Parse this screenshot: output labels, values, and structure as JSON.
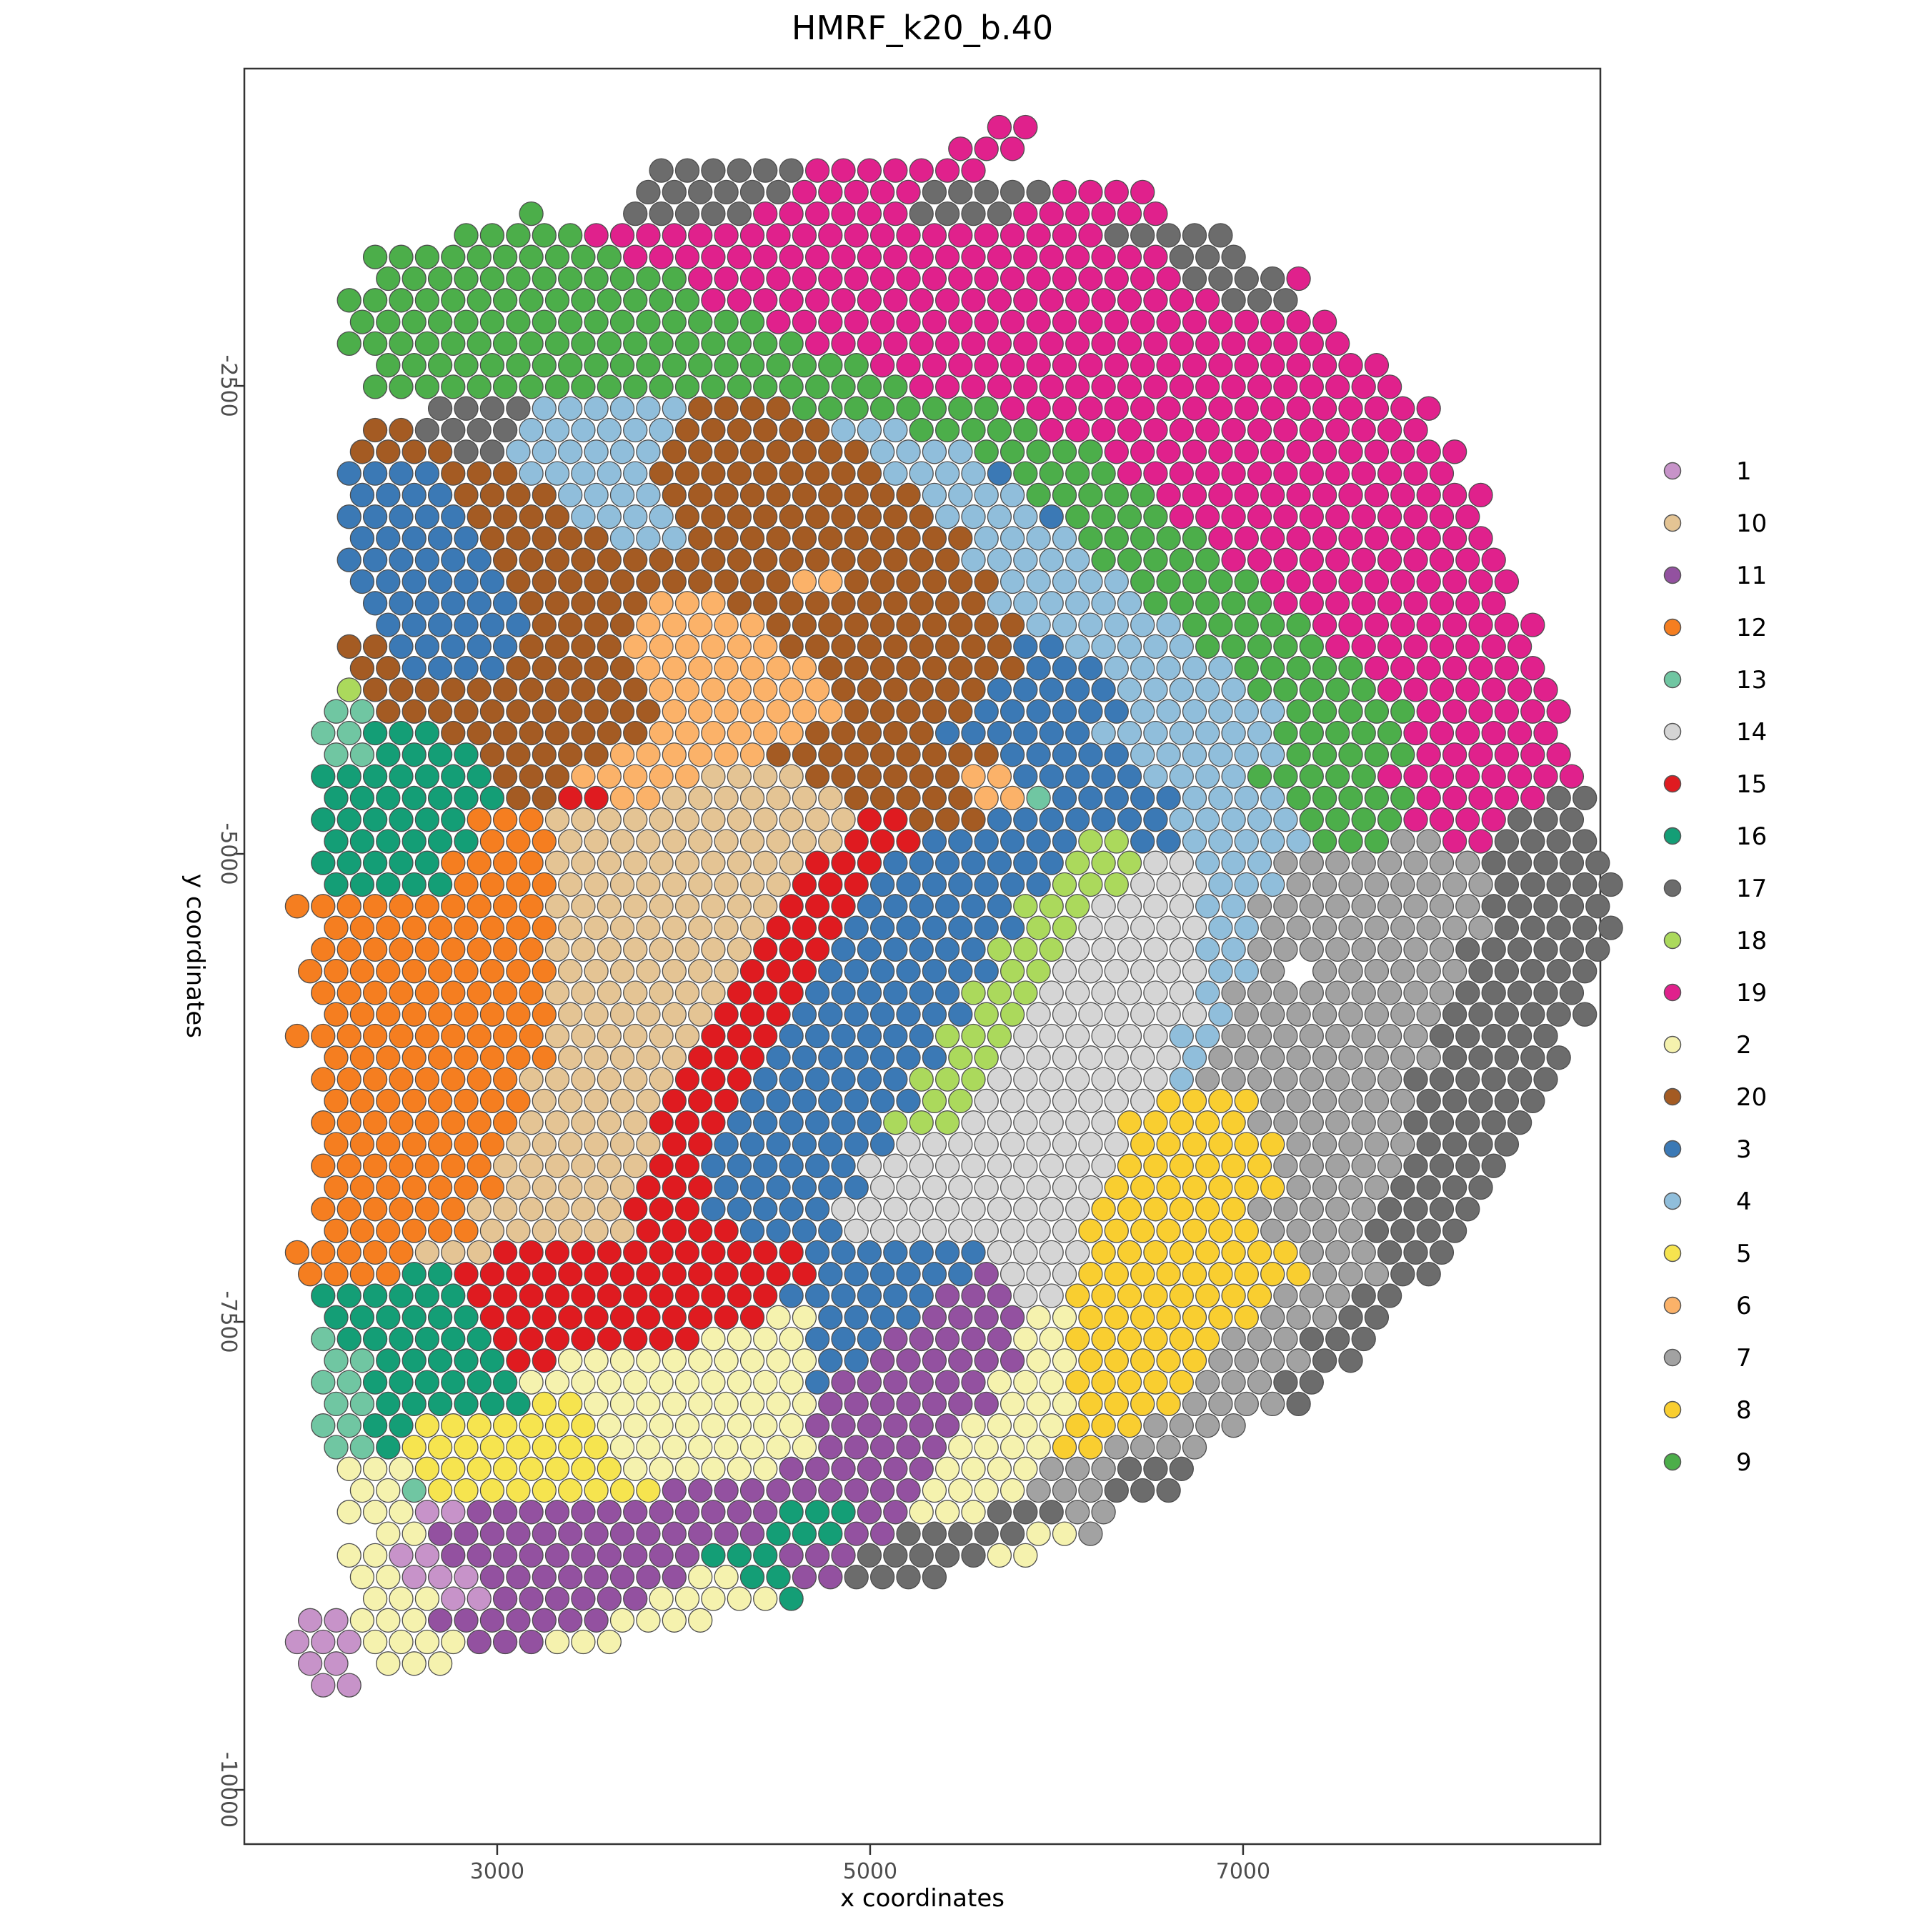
{
  "title": "HMRF_k20_b.40",
  "chart_data": {
    "type": "scatter",
    "title": "HMRF_k20_b.40",
    "xlabel": "x coordinates",
    "ylabel": "y coordinates",
    "x_ticks": [
      3000,
      5000,
      7000
    ],
    "y_ticks": [
      -2500,
      -5000,
      -7500,
      -10000
    ],
    "x_range": [
      1644,
      8916
    ],
    "y_range": [
      -10290,
      -805
    ],
    "grid_lines": false,
    "legend_position": "right",
    "legend_order": [
      "1",
      "10",
      "11",
      "12",
      "13",
      "14",
      "15",
      "16",
      "17",
      "18",
      "19",
      "2",
      "20",
      "3",
      "4",
      "5",
      "6",
      "7",
      "8",
      "9"
    ],
    "cluster_colors": {
      "1": "#C793C9",
      "2": "#F5F2AE",
      "3": "#3B79B5",
      "4": "#90BEDB",
      "5": "#F6E44F",
      "6": "#FBB269",
      "7": "#A2A2A2",
      "8": "#F9CE30",
      "9": "#4CAE4A",
      "10": "#E4C494",
      "11": "#9351A0",
      "12": "#F57E20",
      "13": "#70C6A2",
      "14": "#D5D5D5",
      "15": "#DF1B20",
      "16": "#149E76",
      "17": "#6C6C6C",
      "18": "#ABD95C",
      "19": "#E0218C",
      "20": "#A45B23"
    },
    "points_grid": {
      "comment": "Hexagonal spot lattice. Data coords: x = x0 + col*dx (+odd_offset on odd rows), y = y0 - row*dy. Rows are run-length encoded: <count><code>, '.'=empty.",
      "x0": 1927,
      "dx": 139.5,
      "odd_offset": 69.8,
      "y0": -1118,
      "dy": 115.6,
      "code_to_cluster": {
        "A": "1",
        "B": "2",
        "C": "3",
        "D": "4",
        "E": "5",
        "F": "6",
        "G": "7",
        "H": "8",
        "I": "9",
        "a": "10",
        "b": "11",
        "c": "12",
        "d": "13",
        "e": "14",
        "f": "15",
        "g": "16",
        "h": "17",
        "i": "18",
        "j": "19",
        "k": "20"
      },
      "rows": [
        "27.2j",
        "25.3j",
        "14.6h7j",
        "13.6h5j5h4j",
        "9.1I3.5h6j4h6j",
        "6.5I20j5h",
        "3.10I21j3h",
        "3.12I19j4h1j",
        "2.14I20j3h",
        "2.16I22j",
        "2.18I21j",
        "3.19I20j",
        "3.21I19j",
        "5.4h6D4k8I17j",
        "3.2k4h6D6k3D5I15j",
        "2.4k2h6D8k4D5I14j",
        "2.4C3k5D9k4D1C4I13j",
        "2.4C4k4D10k4D5I13j",
        "2.5C4k4D10k4D1C4I12j",
        "2.5C5k3D11k4D5I11j",
        "2.6C18k5D5I11j",
        "2.6C11k2F6k5D5I10j",
        "3.6C5k3F10k6D5I9j",
        "3.6C4k5F10k6D5I9j",
        "2.2k5C4k6F9k2C5D5I8j",
        "2.2k4C5k7F8k3C5D5I7j",
        "2.1i11k7F6k5C5D5I7j",
        "1.2d11k7F5k6C6D5I6j",
        "1.2d3g8k6F5k6C7D5I6j",
        "1.2d4g5k6F9k5C6D5I6j",
        "1.7g3k5F4a6k2F5C4D5I8j",
        "1.7g2k2f2F7a5k2F1d5C4D5I5j2h",
        "1.6g3c12a2f3k7C5D4I4j3h",
        "1.6g3c11a3f6C2i2C5D3I2G2j4h",
        "1.5g4c10a3f7C3i2e3D8G5h",
        "1.5g4c9a3f7C3i3e3D8G5h",
        "10c9a3f6C3i4e2D9G5h",
        "1.9c8a3f7C2i5e2D9G5h",
        "1.9c8a3f6C3i5e2D8G6h",
        "10c7a3f7C2i6e2D1G1.6G5h",
        "1.9c7a3f6C3i6e1D9G5h",
        "1.9c6a3f7C2i7e1D8G6h",
        "10c6a3f6C3i6e2D8G5h",
        "1.9c5a3f7C2i7e1D9G5h",
        "1.8c6a3f6C3i7e1D8G6h",
        "1.8c5a3f7C2i7e4H6G5h",
        "1.8c5a3f6C3i6e5H6G5h",
        "1.7c6a2f7C9e6H5G4h",
        "1.7c6a2f6C10e6H5G4h",
        "1.7c5a3f6C9e7H4G4h",
        "1.6c6a3f5C10e6H5G4h",
        "1.6c6a4f4C9e7H4G4h",
        "5c3a12f7C4e8H3G3h",
        "4c2g14f6C1b3e9H3G2h",
        "1.6g12f6C3b2e8H3G2h",
        "1.6g11f2B4C4b2B7H3G2h",
        "1.1d6g8f4B3C5b2B6H3G3h",
        "1.2d5g2f10B2C6b2B5H4G2h",
        "1.2d6g11B1C6b3B5H3G2h",
        "1.2d6g2E9B7b3B4H4G1h",
        "1.2d2g7E8B6b4B3H4G",
        "1.2d1g8E8B5b4B2H4G",
        "2.3B8E6B6b4B3G3h",
        "2.2B1d9E10b4B3G3h",
        "2.3B2A12b3g2b3B3h2G",
        "3.2B13b3g2b5h2B1G",
        "2.2B2A10b3g3b5h2B",
        "2.2B3A8b2B2g2b4h",
        "3.3B2A6b5B1g",
        "2A3B7b4B",
        "3A4B3b3B",
        "2A1.3B",
        "1.2A"
      ]
    }
  },
  "legend": {
    "labels": [
      "1",
      "10",
      "11",
      "12",
      "13",
      "14",
      "15",
      "16",
      "17",
      "18",
      "19",
      "2",
      "20",
      "3",
      "4",
      "5",
      "6",
      "7",
      "8",
      "9"
    ]
  }
}
